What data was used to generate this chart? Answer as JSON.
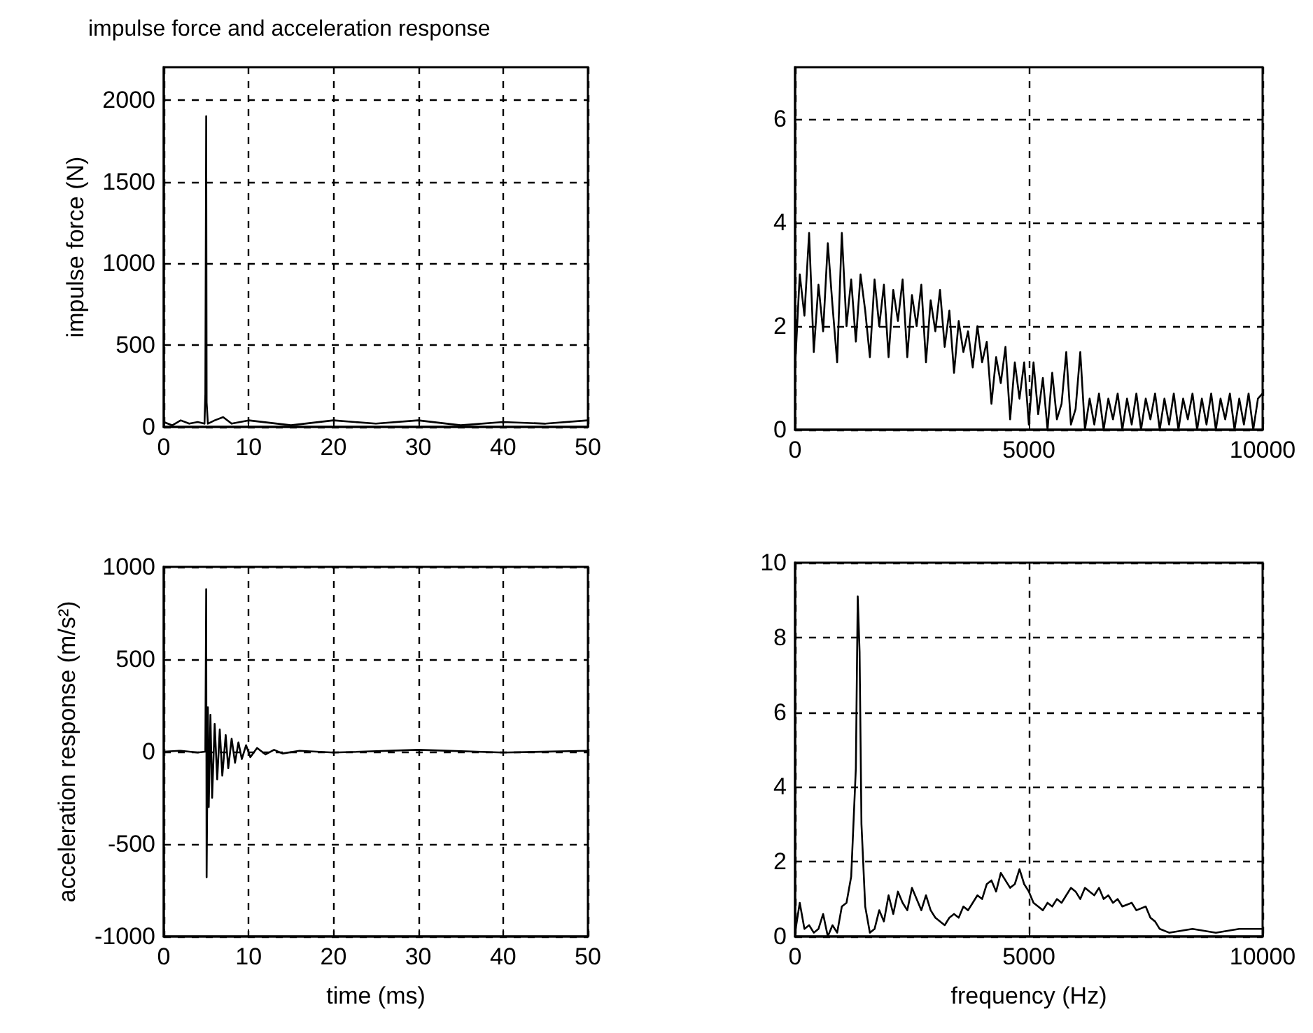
{
  "chart_data": [
    {
      "type": "line",
      "title": "impulse force and acceleration response",
      "ylabel": "impulse force (N)",
      "xlim": [
        0,
        50
      ],
      "xticks": [
        0,
        10,
        20,
        30,
        40,
        50
      ],
      "ylim": [
        0,
        2200
      ],
      "yticks": [
        0,
        500,
        1000,
        1500,
        2000
      ],
      "grid": true,
      "series": [
        {
          "color": "#000000",
          "x": [
            0,
            1,
            2,
            3,
            4,
            4.8,
            4.9,
            5.0,
            5.05,
            5.2,
            6,
            7,
            8,
            10,
            15,
            20,
            25,
            30,
            35,
            40,
            45,
            50
          ],
          "values": [
            30,
            10,
            40,
            20,
            30,
            20,
            200,
            1900,
            150,
            20,
            40,
            60,
            20,
            40,
            10,
            40,
            20,
            40,
            10,
            30,
            20,
            40
          ]
        }
      ]
    },
    {
      "type": "line",
      "xlim": [
        0,
        10000
      ],
      "xticks": [
        0,
        5000,
        10000
      ],
      "ylim": [
        0,
        7
      ],
      "yticks": [
        0,
        2,
        4,
        6
      ],
      "grid": true,
      "series": [
        {
          "color": "#000000",
          "x": [
            0,
            100,
            200,
            300,
            400,
            500,
            600,
            700,
            800,
            900,
            1000,
            1100,
            1200,
            1300,
            1400,
            1500,
            1600,
            1700,
            1800,
            1900,
            2000,
            2100,
            2200,
            2300,
            2400,
            2500,
            2600,
            2700,
            2800,
            2900,
            3000,
            3100,
            3200,
            3300,
            3400,
            3500,
            3600,
            3700,
            3800,
            3900,
            4000,
            4100,
            4200,
            4300,
            4400,
            4500,
            4600,
            4700,
            4800,
            4900,
            5000,
            5100,
            5200,
            5300,
            5400,
            5500,
            5600,
            5700,
            5800,
            5900,
            6000,
            6100,
            6200,
            6300,
            6400,
            6500,
            6600,
            6700,
            6800,
            6900,
            7000,
            7100,
            7200,
            7300,
            7400,
            7500,
            7600,
            7700,
            7800,
            7900,
            8000,
            8100,
            8200,
            8300,
            8400,
            8500,
            8600,
            8700,
            8800,
            8900,
            9000,
            9100,
            9200,
            9300,
            9400,
            9500,
            9600,
            9700,
            9800,
            9900,
            10000
          ],
          "values": [
            1.2,
            3.0,
            2.2,
            3.8,
            1.5,
            2.8,
            1.9,
            3.6,
            2.4,
            1.3,
            3.8,
            2.0,
            2.9,
            1.7,
            3.0,
            2.3,
            1.4,
            2.9,
            2.0,
            2.8,
            1.4,
            2.7,
            2.1,
            2.9,
            1.4,
            2.6,
            2.0,
            2.8,
            1.3,
            2.5,
            1.9,
            2.7,
            1.6,
            2.3,
            1.1,
            2.1,
            1.5,
            1.9,
            1.2,
            2.0,
            1.3,
            1.7,
            0.5,
            1.4,
            0.9,
            1.6,
            0.2,
            1.3,
            0.6,
            1.3,
            0.1,
            1.3,
            0.3,
            1.0,
            0.0,
            1.1,
            0.2,
            0.5,
            1.5,
            0.1,
            0.4,
            1.5,
            0.0,
            0.6,
            0.1,
            0.7,
            0.0,
            0.6,
            0.2,
            0.7,
            0.0,
            0.6,
            0.1,
            0.7,
            0.0,
            0.6,
            0.2,
            0.7,
            0.0,
            0.6,
            0.1,
            0.7,
            0.0,
            0.6,
            0.2,
            0.7,
            0.0,
            0.6,
            0.1,
            0.7,
            0.0,
            0.6,
            0.2,
            0.7,
            0.0,
            0.6,
            0.1,
            0.7,
            0.0,
            0.6,
            0.7
          ]
        }
      ]
    },
    {
      "type": "line",
      "xlabel": "time (ms)",
      "ylabel": "acceleration response (m/s²)",
      "xlim": [
        0,
        50
      ],
      "xticks": [
        0,
        10,
        20,
        30,
        40,
        50
      ],
      "ylim": [
        -1000,
        1000
      ],
      "yticks": [
        -1000,
        -500,
        0,
        500,
        1000
      ],
      "grid": true,
      "series": [
        {
          "color": "#000000",
          "x": [
            0,
            2,
            4,
            4.9,
            5.0,
            5.05,
            5.2,
            5.3,
            5.5,
            5.7,
            6.0,
            6.3,
            6.6,
            6.9,
            7.3,
            7.6,
            8.0,
            8.4,
            8.8,
            9.2,
            9.7,
            10.2,
            11,
            12,
            13,
            14,
            16,
            20,
            30,
            40,
            50
          ],
          "values": [
            0,
            5,
            -5,
            0,
            880,
            -680,
            240,
            -300,
            200,
            -250,
            150,
            -150,
            120,
            -130,
            90,
            -90,
            70,
            -60,
            50,
            -40,
            35,
            -30,
            20,
            -15,
            10,
            -10,
            5,
            -5,
            10,
            -5,
            5
          ]
        }
      ]
    },
    {
      "type": "line",
      "xlabel": "frequency (Hz)",
      "xlim": [
        0,
        10000
      ],
      "xticks": [
        0,
        5000,
        10000
      ],
      "ylim": [
        0,
        10
      ],
      "yticks": [
        0,
        2,
        4,
        6,
        8,
        10
      ],
      "grid": true,
      "series": [
        {
          "color": "#000000",
          "x": [
            0,
            100,
            200,
            300,
            400,
            500,
            600,
            700,
            800,
            900,
            1000,
            1100,
            1200,
            1300,
            1340,
            1380,
            1420,
            1500,
            1600,
            1700,
            1800,
            1900,
            2000,
            2100,
            2200,
            2300,
            2400,
            2500,
            2600,
            2700,
            2800,
            2900,
            3000,
            3200,
            3300,
            3400,
            3500,
            3600,
            3700,
            3800,
            3900,
            4000,
            4100,
            4200,
            4300,
            4400,
            4500,
            4600,
            4700,
            4800,
            4900,
            5000,
            5100,
            5200,
            5300,
            5400,
            5500,
            5600,
            5700,
            5800,
            5900,
            6000,
            6100,
            6200,
            6300,
            6400,
            6500,
            6600,
            6700,
            6800,
            6900,
            7000,
            7200,
            7300,
            7500,
            7600,
            7700,
            7800,
            8000,
            8500,
            9000,
            9500,
            10000
          ],
          "values": [
            0.1,
            0.9,
            0.2,
            0.3,
            0.1,
            0.2,
            0.6,
            0.0,
            0.3,
            0.1,
            0.8,
            0.9,
            1.6,
            4.5,
            9.1,
            7.6,
            3.0,
            0.8,
            0.1,
            0.2,
            0.7,
            0.4,
            1.1,
            0.6,
            1.2,
            0.9,
            0.7,
            1.3,
            1.0,
            0.7,
            1.1,
            0.7,
            0.5,
            0.3,
            0.5,
            0.6,
            0.5,
            0.8,
            0.7,
            0.9,
            1.1,
            1.0,
            1.4,
            1.5,
            1.2,
            1.7,
            1.5,
            1.3,
            1.4,
            1.8,
            1.4,
            1.2,
            0.9,
            0.8,
            0.7,
            0.9,
            0.8,
            1.0,
            0.9,
            1.1,
            1.3,
            1.2,
            1.0,
            1.3,
            1.2,
            1.1,
            1.3,
            1.0,
            1.1,
            0.9,
            1.0,
            0.8,
            0.9,
            0.7,
            0.8,
            0.5,
            0.4,
            0.2,
            0.1,
            0.2,
            0.1,
            0.2,
            0.2
          ]
        }
      ]
    }
  ]
}
